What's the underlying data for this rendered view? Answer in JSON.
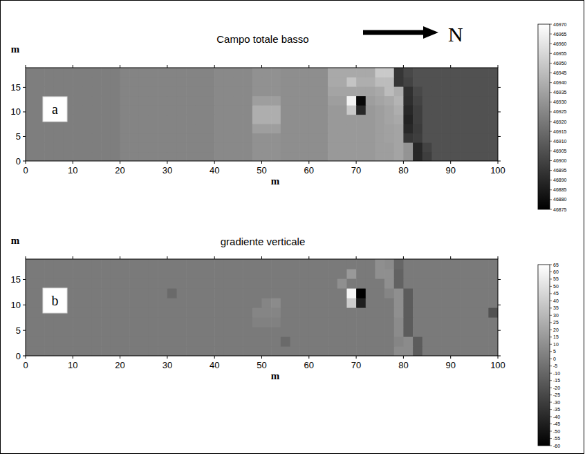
{
  "chart_data": [
    {
      "type": "heatmap",
      "title": "Campo totale basso",
      "panel": "a",
      "annotation": "N",
      "x_label": "m",
      "y_label": "m",
      "xlim": [
        0,
        100
      ],
      "xticks": [
        0,
        10,
        20,
        30,
        40,
        50,
        60,
        70,
        80,
        90,
        100
      ],
      "ylim": [
        0,
        19
      ],
      "yticks": [
        0,
        5,
        10,
        15
      ],
      "x": [
        1,
        3,
        5,
        7,
        9,
        11,
        13,
        15,
        17,
        19,
        21,
        23,
        25,
        27,
        29,
        31,
        33,
        35,
        37,
        39,
        41,
        43,
        45,
        47,
        49,
        51,
        53,
        55,
        57,
        59,
        61,
        63,
        65,
        67,
        69,
        71,
        73,
        75,
        77,
        79,
        81,
        83,
        85,
        87,
        89,
        91,
        93,
        95,
        97,
        99
      ],
      "y": [
        0.95,
        2.85,
        4.75,
        6.65,
        8.55,
        10.45,
        12.35,
        14.25,
        16.15,
        18.05
      ],
      "color_range": [
        46875,
        46970
      ],
      "color_ticks": [
        46875,
        46880,
        46885,
        46890,
        46895,
        46900,
        46905,
        46910,
        46915,
        46920,
        46925,
        46930,
        46935,
        46940,
        46945,
        46950,
        46955,
        46960,
        46965,
        46970
      ],
      "cells": [
        [
          46922,
          46922,
          46922,
          46922,
          46922,
          46922,
          46922,
          46922,
          46922,
          46922,
          46924,
          46924,
          46924,
          46924,
          46924,
          46924,
          46924,
          46924,
          46924,
          46924,
          46926,
          46926,
          46926,
          46926,
          46929,
          46929,
          46929,
          46928,
          46928,
          46928,
          46928,
          46928,
          46932,
          46932,
          46932,
          46932,
          46932,
          46934,
          46934,
          46936,
          46930,
          46890,
          46898,
          46905,
          46905,
          46905,
          46905,
          46905,
          46905,
          46905
        ],
        [
          46922,
          46922,
          46922,
          46922,
          46922,
          46922,
          46922,
          46922,
          46922,
          46922,
          46924,
          46924,
          46924,
          46924,
          46924,
          46924,
          46924,
          46924,
          46924,
          46924,
          46926,
          46926,
          46926,
          46926,
          46929,
          46929,
          46929,
          46928,
          46928,
          46928,
          46928,
          46928,
          46932,
          46932,
          46932,
          46932,
          46932,
          46934,
          46934,
          46936,
          46930,
          46890,
          46900,
          46905,
          46905,
          46905,
          46905,
          46905,
          46905,
          46905
        ],
        [
          46922,
          46922,
          46922,
          46922,
          46922,
          46922,
          46922,
          46922,
          46922,
          46922,
          46924,
          46924,
          46924,
          46924,
          46924,
          46924,
          46924,
          46924,
          46924,
          46924,
          46926,
          46926,
          46926,
          46926,
          46929,
          46929,
          46929,
          46928,
          46928,
          46928,
          46928,
          46928,
          46932,
          46932,
          46932,
          46932,
          46932,
          46934,
          46935,
          46936,
          46895,
          46898,
          46905,
          46905,
          46905,
          46905,
          46905,
          46905,
          46905,
          46905
        ],
        [
          46922,
          46922,
          46922,
          46922,
          46922,
          46922,
          46922,
          46922,
          46922,
          46922,
          46924,
          46924,
          46924,
          46924,
          46924,
          46924,
          46924,
          46924,
          46924,
          46924,
          46926,
          46926,
          46926,
          46926,
          46934,
          46934,
          46934,
          46928,
          46928,
          46928,
          46928,
          46928,
          46932,
          46932,
          46932,
          46932,
          46932,
          46934,
          46935,
          46936,
          46890,
          46897,
          46905,
          46905,
          46905,
          46905,
          46905,
          46905,
          46905,
          46905
        ],
        [
          46922,
          46922,
          46922,
          46922,
          46922,
          46922,
          46922,
          46922,
          46922,
          46922,
          46924,
          46924,
          46924,
          46924,
          46924,
          46924,
          46924,
          46924,
          46924,
          46924,
          46926,
          46926,
          46926,
          46926,
          46940,
          46940,
          46940,
          46928,
          46928,
          46928,
          46928,
          46928,
          46932,
          46932,
          46932,
          46932,
          46932,
          46934,
          46936,
          46938,
          46888,
          46898,
          46905,
          46905,
          46905,
          46905,
          46905,
          46905,
          46905,
          46905
        ],
        [
          46922,
          46922,
          46922,
          46922,
          46922,
          46922,
          46922,
          46922,
          46922,
          46922,
          46924,
          46924,
          46924,
          46924,
          46924,
          46924,
          46924,
          46924,
          46924,
          46924,
          46926,
          46926,
          46926,
          46926,
          46940,
          46940,
          46940,
          46928,
          46928,
          46928,
          46928,
          46928,
          46932,
          46932,
          46950,
          46890,
          46932,
          46934,
          46936,
          46940,
          46890,
          46898,
          46905,
          46905,
          46905,
          46905,
          46905,
          46905,
          46905,
          46905
        ],
        [
          46922,
          46922,
          46922,
          46922,
          46922,
          46922,
          46922,
          46922,
          46922,
          46922,
          46924,
          46924,
          46924,
          46924,
          46924,
          46924,
          46924,
          46924,
          46924,
          46924,
          46926,
          46926,
          46926,
          46926,
          46934,
          46934,
          46934,
          46928,
          46928,
          46928,
          46928,
          46928,
          46934,
          46934,
          46965,
          46878,
          46934,
          46936,
          46938,
          46942,
          46892,
          46900,
          46905,
          46905,
          46905,
          46905,
          46905,
          46905,
          46905,
          46905
        ],
        [
          46922,
          46922,
          46922,
          46922,
          46922,
          46922,
          46922,
          46922,
          46922,
          46922,
          46924,
          46924,
          46924,
          46924,
          46924,
          46924,
          46924,
          46924,
          46924,
          46924,
          46926,
          46926,
          46926,
          46926,
          46929,
          46929,
          46929,
          46928,
          46928,
          46928,
          46928,
          46928,
          46936,
          46936,
          46936,
          46936,
          46936,
          46938,
          46945,
          46940,
          46893,
          46902,
          46905,
          46905,
          46905,
          46905,
          46905,
          46905,
          46905,
          46905
        ],
        [
          46922,
          46922,
          46922,
          46922,
          46922,
          46922,
          46922,
          46922,
          46922,
          46922,
          46924,
          46924,
          46924,
          46924,
          46924,
          46924,
          46924,
          46924,
          46924,
          46924,
          46926,
          46926,
          46926,
          46926,
          46929,
          46929,
          46929,
          46928,
          46928,
          46928,
          46928,
          46928,
          46938,
          46938,
          46948,
          46940,
          46940,
          46945,
          46945,
          46895,
          46900,
          46905,
          46905,
          46905,
          46905,
          46905,
          46905,
          46905,
          46905,
          46905
        ],
        [
          46922,
          46922,
          46922,
          46922,
          46922,
          46922,
          46922,
          46922,
          46922,
          46922,
          46924,
          46924,
          46924,
          46924,
          46924,
          46924,
          46924,
          46924,
          46924,
          46924,
          46926,
          46926,
          46926,
          46926,
          46929,
          46929,
          46929,
          46928,
          46928,
          46928,
          46928,
          46928,
          46938,
          46938,
          46938,
          46938,
          46938,
          46950,
          46950,
          46895,
          46902,
          46905,
          46905,
          46905,
          46905,
          46905,
          46905,
          46905,
          46905,
          46905
        ]
      ]
    },
    {
      "type": "heatmap",
      "title": "gradiente verticale",
      "panel": "b",
      "x_label": "m",
      "y_label": "m",
      "xlim": [
        0,
        100
      ],
      "xticks": [
        0,
        10,
        20,
        30,
        40,
        50,
        60,
        70,
        80,
        90,
        100
      ],
      "ylim": [
        0,
        19
      ],
      "yticks": [
        0,
        5,
        10,
        15
      ],
      "x": [
        1,
        3,
        5,
        7,
        9,
        11,
        13,
        15,
        17,
        19,
        21,
        23,
        25,
        27,
        29,
        31,
        33,
        35,
        37,
        39,
        41,
        43,
        45,
        47,
        49,
        51,
        53,
        55,
        57,
        59,
        61,
        63,
        65,
        67,
        69,
        71,
        73,
        75,
        77,
        79,
        81,
        83,
        85,
        87,
        89,
        91,
        93,
        95,
        97,
        99
      ],
      "y": [
        0.95,
        2.85,
        4.75,
        6.65,
        8.55,
        10.45,
        12.35,
        14.25,
        16.15,
        18.05
      ],
      "color_range": [
        -60,
        65
      ],
      "color_ticks": [
        -60,
        -55,
        -50,
        -45,
        -40,
        -35,
        -30,
        -25,
        -20,
        -15,
        -10,
        -5,
        0,
        5,
        10,
        15,
        20,
        25,
        30,
        35,
        40,
        45,
        50,
        55,
        60,
        65
      ],
      "cells": [
        [
          0,
          0,
          0,
          0,
          0,
          0,
          0,
          0,
          0,
          0,
          0,
          0,
          0,
          0,
          0,
          0,
          0,
          0,
          0,
          0,
          0,
          0,
          0,
          0,
          0,
          0,
          0,
          0,
          0,
          0,
          0,
          0,
          0,
          0,
          0,
          0,
          0,
          0,
          0,
          8,
          8,
          -15,
          0,
          0,
          0,
          0,
          0,
          0,
          0,
          0
        ],
        [
          0,
          0,
          0,
          0,
          0,
          0,
          0,
          0,
          0,
          0,
          0,
          0,
          0,
          0,
          0,
          0,
          0,
          0,
          0,
          0,
          0,
          0,
          0,
          0,
          0,
          0,
          0,
          -8,
          0,
          0,
          0,
          0,
          0,
          0,
          0,
          0,
          0,
          0,
          0,
          5,
          8,
          -15,
          0,
          0,
          0,
          0,
          0,
          0,
          0,
          0
        ],
        [
          0,
          0,
          0,
          0,
          0,
          0,
          0,
          0,
          0,
          0,
          0,
          0,
          0,
          0,
          0,
          0,
          0,
          0,
          0,
          0,
          0,
          0,
          0,
          0,
          0,
          0,
          0,
          0,
          0,
          0,
          0,
          0,
          0,
          0,
          0,
          0,
          0,
          0,
          0,
          8,
          -15,
          0,
          0,
          0,
          0,
          0,
          0,
          0,
          0,
          0
        ],
        [
          0,
          0,
          0,
          0,
          0,
          0,
          0,
          0,
          0,
          0,
          0,
          0,
          0,
          0,
          0,
          0,
          0,
          0,
          0,
          0,
          0,
          0,
          0,
          0,
          3,
          3,
          3,
          0,
          0,
          0,
          0,
          0,
          0,
          0,
          0,
          0,
          0,
          0,
          0,
          8,
          -15,
          0,
          0,
          0,
          0,
          0,
          0,
          0,
          0,
          0
        ],
        [
          0,
          0,
          0,
          0,
          0,
          0,
          0,
          0,
          0,
          0,
          0,
          0,
          0,
          0,
          0,
          0,
          0,
          0,
          0,
          0,
          0,
          0,
          0,
          0,
          5,
          5,
          5,
          0,
          0,
          0,
          0,
          0,
          0,
          0,
          0,
          0,
          0,
          0,
          0,
          10,
          -15,
          0,
          0,
          0,
          0,
          0,
          0,
          0,
          0,
          -20
        ],
        [
          0,
          0,
          0,
          0,
          0,
          0,
          0,
          0,
          0,
          0,
          0,
          0,
          0,
          0,
          0,
          0,
          0,
          0,
          0,
          0,
          0,
          0,
          0,
          0,
          0,
          5,
          8,
          0,
          0,
          0,
          0,
          0,
          0,
          0,
          40,
          -45,
          0,
          0,
          0,
          10,
          -15,
          0,
          0,
          0,
          0,
          0,
          0,
          0,
          0,
          0
        ],
        [
          0,
          0,
          0,
          0,
          0,
          0,
          0,
          0,
          0,
          0,
          0,
          0,
          0,
          0,
          0,
          -8,
          0,
          0,
          0,
          0,
          0,
          0,
          0,
          0,
          0,
          0,
          0,
          0,
          0,
          0,
          0,
          0,
          0,
          0,
          60,
          -60,
          0,
          0,
          5,
          10,
          -15,
          0,
          0,
          0,
          0,
          0,
          0,
          0,
          0,
          0
        ],
        [
          0,
          0,
          0,
          0,
          0,
          0,
          0,
          0,
          0,
          0,
          0,
          0,
          0,
          0,
          0,
          0,
          0,
          0,
          0,
          0,
          0,
          0,
          0,
          0,
          0,
          0,
          0,
          0,
          0,
          0,
          0,
          0,
          0,
          10,
          0,
          0,
          0,
          0,
          10,
          -12,
          0,
          0,
          0,
          0,
          0,
          0,
          0,
          0,
          0,
          0
        ],
        [
          0,
          0,
          0,
          0,
          0,
          0,
          0,
          0,
          0,
          0,
          0,
          0,
          0,
          0,
          0,
          0,
          0,
          0,
          0,
          0,
          0,
          0,
          0,
          0,
          0,
          0,
          0,
          0,
          0,
          0,
          0,
          0,
          0,
          0,
          15,
          0,
          0,
          10,
          10,
          -12,
          0,
          0,
          0,
          0,
          0,
          0,
          0,
          0,
          0,
          0
        ],
        [
          0,
          0,
          0,
          0,
          0,
          0,
          0,
          0,
          0,
          0,
          0,
          0,
          0,
          0,
          0,
          0,
          0,
          0,
          0,
          0,
          0,
          0,
          0,
          0,
          0,
          0,
          0,
          0,
          0,
          0,
          0,
          0,
          0,
          0,
          0,
          0,
          0,
          10,
          8,
          -10,
          0,
          0,
          0,
          0,
          0,
          0,
          0,
          0,
          0,
          0
        ]
      ]
    }
  ]
}
